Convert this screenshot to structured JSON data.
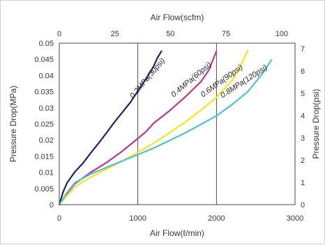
{
  "chart_data": {
    "type": "line",
    "title": "",
    "x_bottom": {
      "label": "Air Flow(ℓ/min)",
      "range": [
        0,
        3000
      ],
      "ticks": [
        "0",
        "1000",
        "2000",
        "3000"
      ],
      "tick_values": [
        0,
        1000,
        2000,
        3000
      ]
    },
    "x_top": {
      "label": "Air Flow(scfm)",
      "range": [
        0,
        106
      ],
      "ticks": [
        "0",
        "25",
        "50",
        "75",
        "100"
      ],
      "tick_values": [
        0,
        25,
        50,
        75,
        100
      ]
    },
    "y_left": {
      "label": "Pressure Drop(MPa)",
      "range": [
        0,
        0.05
      ],
      "ticks": [
        "0",
        "0.005",
        "0.01",
        "0.015",
        "0.02",
        "0.025",
        "0.03",
        "0.035",
        "0.04",
        "0.045",
        "0.05"
      ],
      "tick_values": [
        0,
        0.005,
        0.01,
        0.015,
        0.02,
        0.025,
        0.03,
        0.035,
        0.04,
        0.045,
        0.05
      ]
    },
    "y_right": {
      "label": "Pressure Drop(psi)",
      "range": [
        0,
        7.25
      ],
      "ticks": [
        "0",
        "1",
        "2",
        "3",
        "4",
        "5",
        "6",
        "7"
      ],
      "tick_values": [
        0,
        1,
        2,
        3,
        4,
        5,
        6,
        7
      ]
    },
    "grid": "major x lines at 1000 and 2000",
    "series": [
      {
        "name": "0.2MPa(30psi)",
        "color": "#1f1f6e",
        "x": [
          0,
          50,
          100,
          200,
          300,
          400,
          500,
          600,
          700,
          800,
          900,
          1000,
          1100,
          1200,
          1250,
          1300
        ],
        "y": [
          0,
          0.004,
          0.0068,
          0.0102,
          0.0128,
          0.016,
          0.019,
          0.0222,
          0.0255,
          0.0285,
          0.0315,
          0.0352,
          0.0388,
          0.0428,
          0.0455,
          0.0475
        ]
      },
      {
        "name": "0.4MPa(60psi)",
        "color": "#c2338f",
        "x": [
          0,
          100,
          200,
          400,
          600,
          800,
          1000,
          1100,
          1200,
          1400,
          1600,
          1800,
          1900,
          2000
        ],
        "y": [
          0,
          0.0035,
          0.0065,
          0.01,
          0.013,
          0.0165,
          0.0205,
          0.0225,
          0.0252,
          0.029,
          0.0333,
          0.038,
          0.0415,
          0.0475
        ]
      },
      {
        "name": "0.6MPa(90psi)",
        "color": "#f2e61d",
        "x": [
          0,
          100,
          200,
          400,
          600,
          800,
          1000,
          1200,
          1400,
          1600,
          1800,
          2000,
          2200,
          2300,
          2400
        ],
        "y": [
          0,
          0.0028,
          0.0055,
          0.0085,
          0.011,
          0.0135,
          0.0162,
          0.019,
          0.0222,
          0.0255,
          0.0292,
          0.0332,
          0.0385,
          0.0425,
          0.0478
        ]
      },
      {
        "name": "0.8MPa(120psi)",
        "color": "#4ebfcf",
        "x": [
          0,
          100,
          200,
          400,
          600,
          800,
          1000,
          1200,
          1400,
          1600,
          1800,
          2000,
          2200,
          2400,
          2600,
          2700
        ],
        "y": [
          0,
          0.0038,
          0.0068,
          0.0095,
          0.0115,
          0.0135,
          0.0155,
          0.0175,
          0.0198,
          0.0222,
          0.0248,
          0.0275,
          0.031,
          0.035,
          0.041,
          0.0448
        ]
      }
    ]
  }
}
